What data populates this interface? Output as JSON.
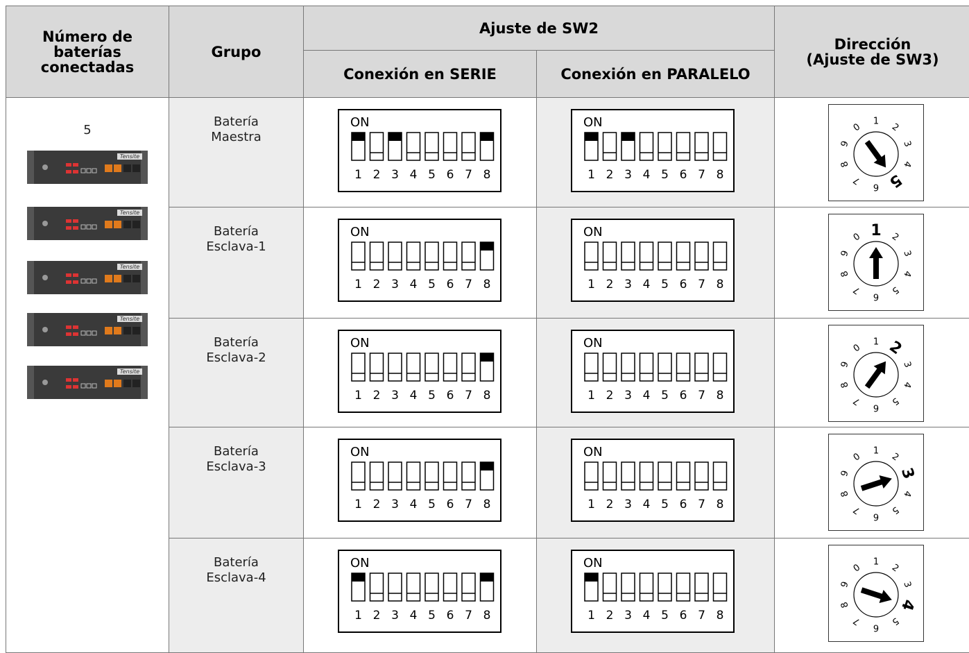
{
  "header": {
    "count": [
      "Número de",
      "baterías",
      "conectadas"
    ],
    "group": "Grupo",
    "sw2": "Ajuste de SW2",
    "serie": "Conexión en SERIE",
    "parallel": "Conexión en PARALELO",
    "direction": [
      "Dirección",
      "(Ajuste de SW3)"
    ]
  },
  "battery_count": "5",
  "battery_brand": "Tensite",
  "dip": {
    "on_label": "ON",
    "positions": [
      "1",
      "2",
      "3",
      "4",
      "5",
      "6",
      "7",
      "8"
    ]
  },
  "rotary_digits": [
    "0",
    "1",
    "2",
    "3",
    "4",
    "5",
    "6",
    "7",
    "8",
    "9"
  ],
  "rows": [
    {
      "group": [
        "Batería",
        "Maestra"
      ],
      "serie": [
        true,
        false,
        true,
        false,
        false,
        false,
        false,
        true
      ],
      "parallel": [
        true,
        false,
        true,
        false,
        false,
        false,
        false,
        false
      ],
      "sw3": 5
    },
    {
      "group": [
        "Batería",
        "Esclava-1"
      ],
      "serie": [
        false,
        false,
        false,
        false,
        false,
        false,
        false,
        true
      ],
      "parallel": [
        false,
        false,
        false,
        false,
        false,
        false,
        false,
        false
      ],
      "sw3": 1
    },
    {
      "group": [
        "Batería",
        "Esclava-2"
      ],
      "serie": [
        false,
        false,
        false,
        false,
        false,
        false,
        false,
        true
      ],
      "parallel": [
        false,
        false,
        false,
        false,
        false,
        false,
        false,
        false
      ],
      "sw3": 2
    },
    {
      "group": [
        "Batería",
        "Esclava-3"
      ],
      "serie": [
        false,
        false,
        false,
        false,
        false,
        false,
        false,
        true
      ],
      "parallel": [
        false,
        false,
        false,
        false,
        false,
        false,
        false,
        false
      ],
      "sw3": 3
    },
    {
      "group": [
        "Batería",
        "Esclava-4"
      ],
      "serie": [
        true,
        false,
        false,
        false,
        false,
        false,
        false,
        true
      ],
      "parallel": [
        true,
        false,
        false,
        false,
        false,
        false,
        false,
        false
      ],
      "sw3": 4
    }
  ]
}
